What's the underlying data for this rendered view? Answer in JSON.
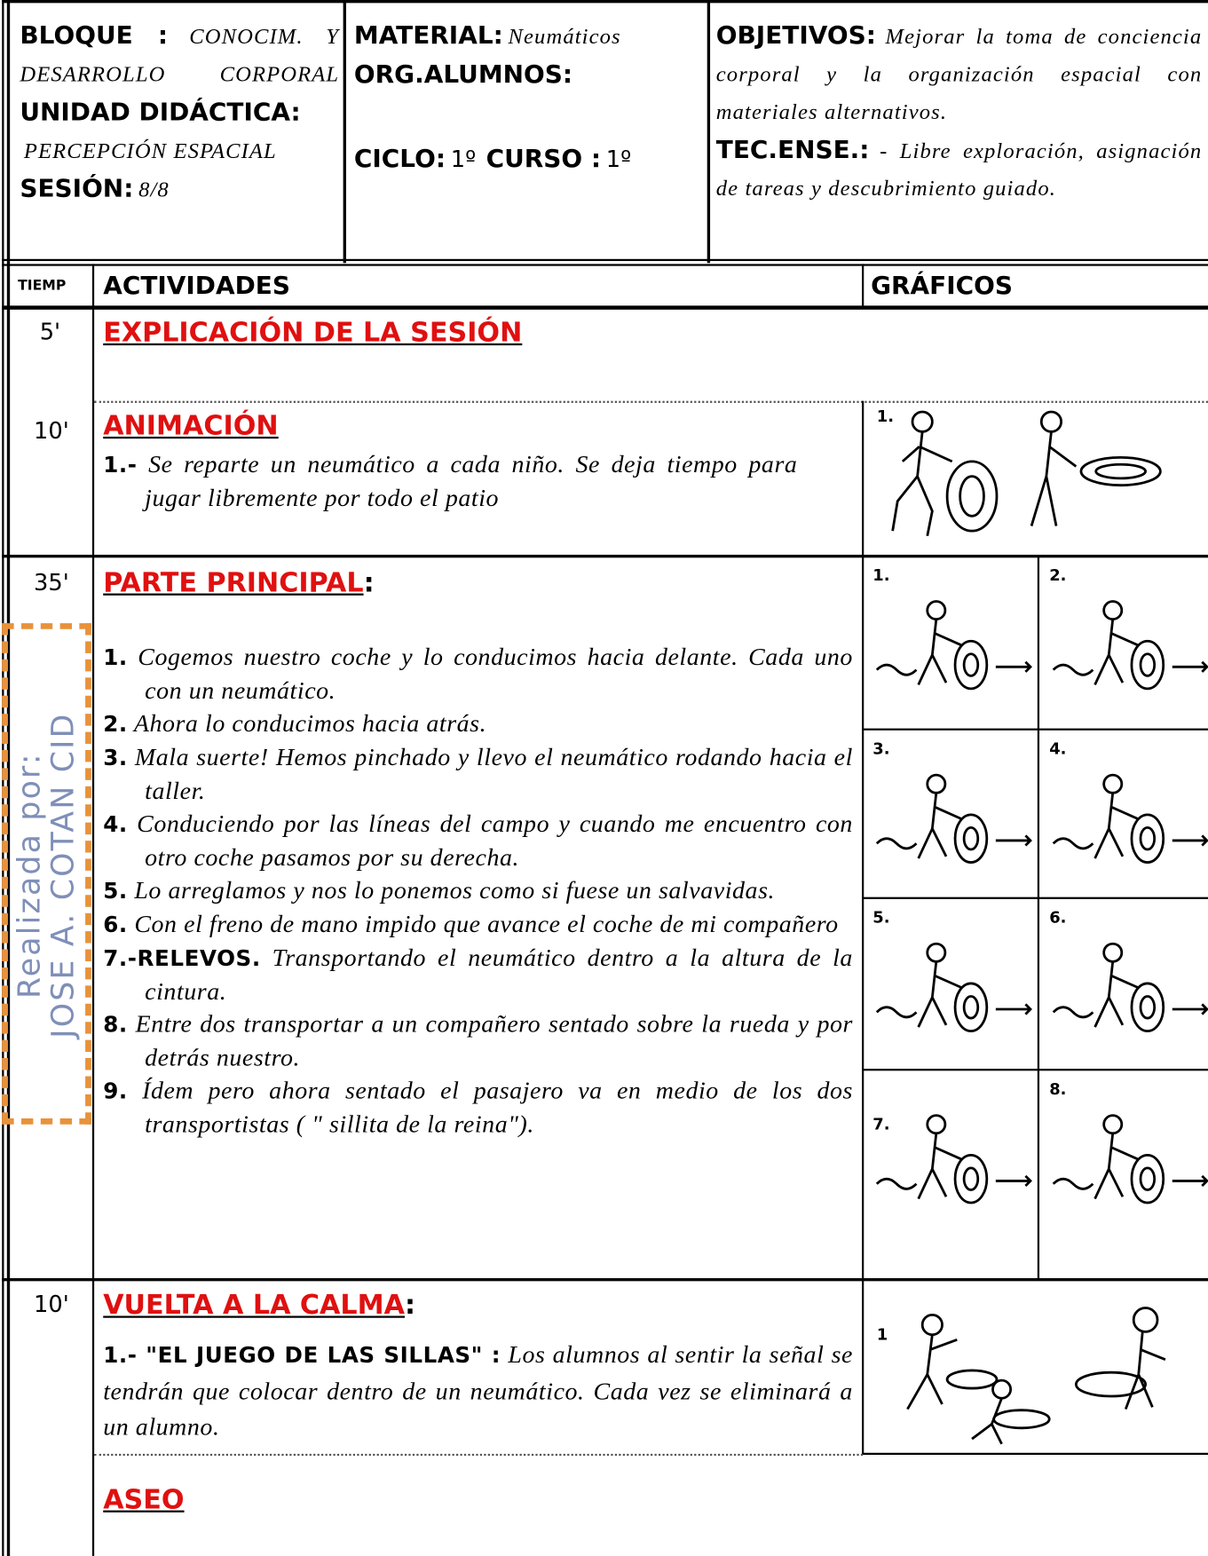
{
  "header": {
    "bloque_label": "BLOQUE :",
    "bloque": "CONOCIM. Y DESARROLLO CORPORAL",
    "unidad_label": "UNIDAD DIDÁCTICA:",
    "unidad": "PERCEPCIÓN ESPACIAL",
    "sesion_label": "SESIÓN:",
    "sesion": "8/8",
    "material_label": "MATERIAL:",
    "material": "Neumáticos",
    "org_label": "ORG.ALUMNOS:",
    "ciclo_label": "CICLO:",
    "ciclo": "1º",
    "curso_label": "CURSO :",
    "curso": "1º",
    "objetivos_label": "OBJETIVOS:",
    "objetivos": "Mejorar la toma de conciencia corporal y la organización espacial con materiales alternativos.",
    "tec_label": "TEC.ENSE.:",
    "tec": "- Libre exploración, asignación de tareas y descubrimiento guiado."
  },
  "table": {
    "columns": [
      "TIEMP",
      "ACTIVIDADES",
      "GRÁFICOS"
    ],
    "rows": [
      {
        "time": "5'",
        "title": "EXPLICACIÓN DE LA SESIÓN"
      },
      {
        "time": "10'",
        "title": "ANIMACIÓN",
        "items": [
          {
            "num": "1.-",
            "text": "Se reparte un neumático a cada niño. Se deja tiempo para jugar libremente por todo el patio"
          }
        ],
        "graphics": [
          "1."
        ]
      },
      {
        "time": "35'",
        "title": "PARTE PRINCIPAL",
        "suffix": ":",
        "items": [
          {
            "num": "1.",
            "text": "Cogemos nuestro coche y lo conducimos hacia delante. Cada uno con un neumático."
          },
          {
            "num": "2.",
            "text": "Ahora lo conducimos hacia atrás."
          },
          {
            "num": "3.",
            "text": "Mala suerte! Hemos pinchado y llevo el neumático rodando hacia el taller."
          },
          {
            "num": "4.",
            "text": "Conduciendo por las líneas del campo y cuando me encuentro con otro coche pasamos por su derecha."
          },
          {
            "num": "5.",
            "text": "Lo arreglamos y nos lo ponemos como si fuese un salvavidas."
          },
          {
            "num": "6.",
            "text": "Con el freno de mano impido que avance el coche de mi compañero"
          },
          {
            "num": "7.-RELEVOS.",
            "text": "Transportando el neumático dentro a la altura de la cintura."
          },
          {
            "num": "8.",
            "text": "Entre dos transportar a un compañero sentado sobre la rueda y por detrás nuestro."
          },
          {
            "num": "9.",
            "text": "Ídem pero ahora sentado el pasajero va en medio de los dos transportistas ( \" sillita de la reina\")."
          }
        ],
        "graphics": [
          "1.",
          "2.",
          "3.",
          "4.",
          "5.",
          "6.",
          "7.",
          "8."
        ]
      },
      {
        "time": "10'",
        "title": "VUELTA A LA CALMA",
        "suffix": ":",
        "items": [
          {
            "num": "1.- \"EL JUEGO DE LAS SILLAS\" :",
            "text": "Los alumnos al sentir la señal se tendrán que colocar dentro de un neumático. Cada vez se eliminará a un alumno."
          }
        ],
        "graphics": [
          "1"
        ],
        "extra_title": "ASEO"
      }
    ]
  },
  "watermark": [
    "Realizada por:",
    "JOSE A. COTAN CID"
  ]
}
